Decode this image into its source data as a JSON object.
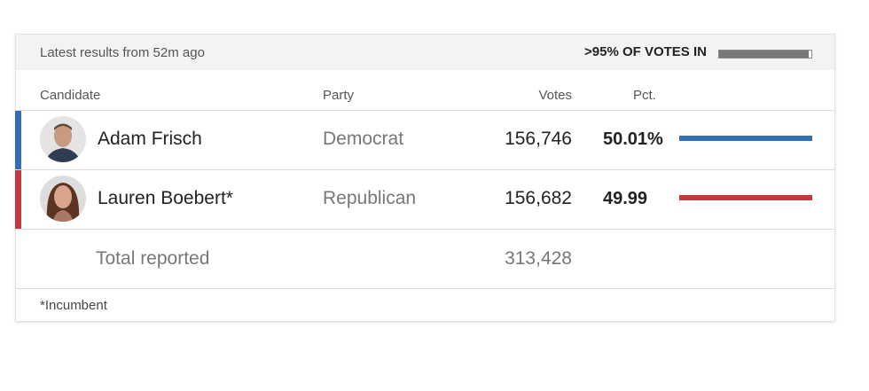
{
  "header": {
    "status": "Latest results from 52m ago",
    "votes_in": ">95% OF VOTES IN"
  },
  "table": {
    "columns": [
      "Candidate",
      "Party",
      "Votes",
      "Pct."
    ],
    "rows": [
      {
        "name": "Adam Frisch",
        "party": "Democrat",
        "votes": "156,746",
        "pct": {
          "value": 50.01,
          "label": "50.01%"
        },
        "color": "#326fb4"
      },
      {
        "name": "Lauren Boebert*",
        "party": "Republican",
        "votes": "156,682",
        "pct": {
          "value": 49.99,
          "label": "49.99"
        },
        "color": "#c0393d"
      }
    ],
    "total": {
      "label": "Total reported",
      "votes": "313,428"
    }
  },
  "footnote": "*Incumbent"
}
